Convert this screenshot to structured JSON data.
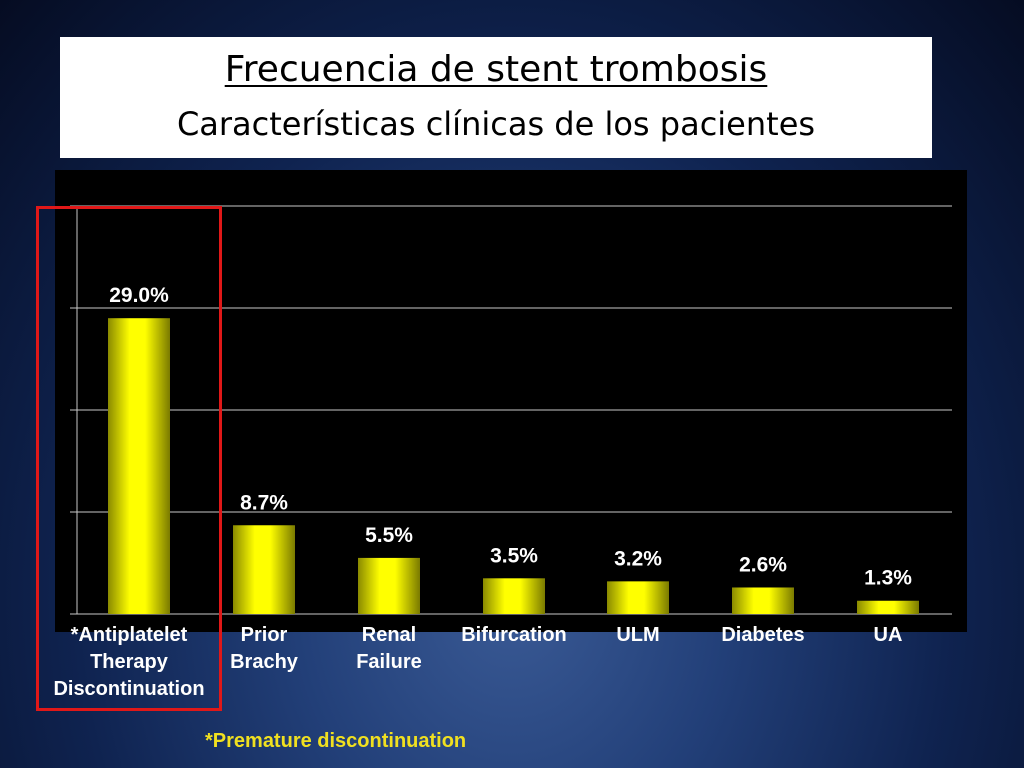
{
  "slide": {
    "title": "Frecuencia de stent trombosis",
    "subtitle": "Características clínicas de los pacientes",
    "footnote": "*Premature discontinuation"
  },
  "chart_data": {
    "type": "bar",
    "categories": [
      "*Antiplatelet\nTherapy\nDiscontinuation",
      "Prior\nBrachy",
      "Renal\nFailure",
      "Bifurcation",
      "ULM",
      "Diabetes",
      "UA"
    ],
    "values": [
      29.0,
      8.7,
      5.5,
      3.5,
      3.2,
      2.6,
      1.3
    ],
    "data_labels": [
      "29.0%",
      "8.7%",
      "5.5%",
      "3.5%",
      "3.2%",
      "2.6%",
      "1.3%"
    ],
    "ylim": [
      0,
      40
    ],
    "grid": true,
    "bar_color": "#ffff00",
    "highlighted_category": "*Antiplatelet\nTherapy\nDiscontinuation",
    "highlight_color": "#e01818"
  }
}
